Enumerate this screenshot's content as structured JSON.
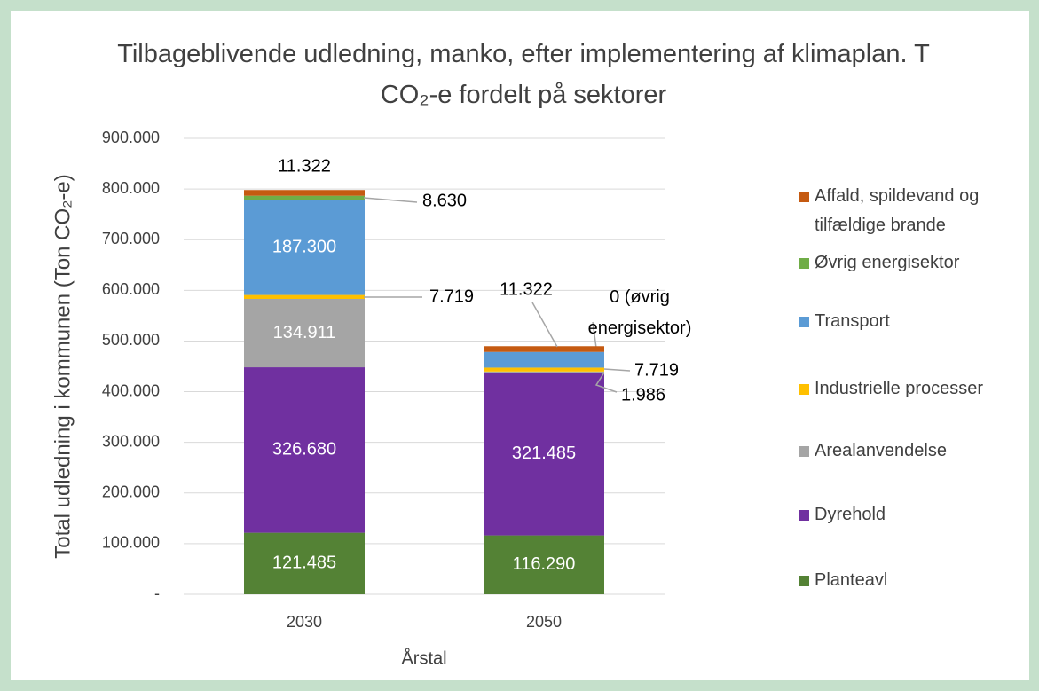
{
  "chart_data": {
    "type": "stacked_bar",
    "title": "Tilbageblivende udledning, manko, efter implementering af klimaplan. T CO₂-e fordelt på sektorer",
    "x_label": "Årstal",
    "y_label": "Total udledning i kommunen (Ton CO₂-e)",
    "categories": [
      "2030",
      "2050"
    ],
    "series": [
      {
        "name": "Planteavl",
        "color": "#548235",
        "values": [
          121485,
          116290
        ],
        "value_labels": [
          "121.485",
          "116.290"
        ]
      },
      {
        "name": "Dyrehold",
        "color": "#7030a0",
        "values": [
          326680,
          321485
        ],
        "value_labels": [
          "326.680",
          "321.485"
        ]
      },
      {
        "name": "Arealanvendelse",
        "color": "#a5a5a5",
        "values": [
          134911,
          1986
        ],
        "value_labels": [
          "134.911",
          "1.986"
        ]
      },
      {
        "name": "Industrielle processer",
        "color": "#ffc000",
        "values": [
          7719,
          7719
        ],
        "value_labels": [
          "7.719",
          "7.719"
        ]
      },
      {
        "name": "Transport",
        "color": "#5b9bd5",
        "values": [
          187300,
          31000
        ],
        "value_labels": [
          "187.300",
          null
        ]
      },
      {
        "name": "Øvrig energisektor",
        "color": "#70ad47",
        "values": [
          8630,
          0
        ],
        "value_labels": [
          "8.630",
          "0 (øvrig energisektor)"
        ]
      },
      {
        "name": "Affald, spildevand og tilfældige brande",
        "color": "#c55a11",
        "values": [
          11322,
          11322
        ],
        "value_labels": [
          "11.322",
          "11.322"
        ]
      }
    ],
    "ylim": [
      0,
      900000
    ],
    "yticks": [
      {
        "value": 0,
        "label": "-"
      },
      {
        "value": 100000,
        "label": "100.000"
      },
      {
        "value": 200000,
        "label": "200.000"
      },
      {
        "value": 300000,
        "label": "300.000"
      },
      {
        "value": 400000,
        "label": "400.000"
      },
      {
        "value": 500000,
        "label": "500.000"
      },
      {
        "value": 600000,
        "label": "600.000"
      },
      {
        "value": 700000,
        "label": "700.000"
      },
      {
        "value": 800000,
        "label": "800.000"
      },
      {
        "value": 900000,
        "label": "900.000"
      }
    ],
    "grid": true,
    "legend": "right"
  }
}
